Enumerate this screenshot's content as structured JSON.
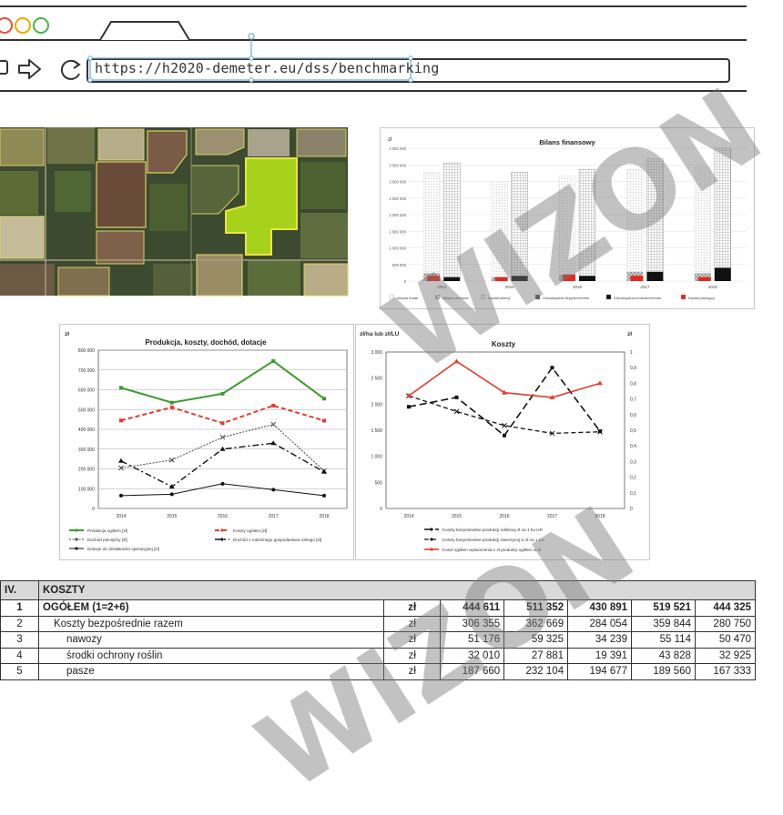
{
  "browser": {
    "url": "https://h2020-demeter.eu/dss/benchmarking",
    "traffic_colors": [
      "#e84d3b",
      "#f0a800",
      "#3dbb3d"
    ]
  },
  "financial_chart": {
    "title": "Bilans finansowy",
    "unit": "zł",
    "y_ticks": [
      "4 000 000",
      "3 500 000",
      "3 000 000",
      "2 500 000",
      "2 000 000",
      "1 500 000",
      "1 000 000",
      "500 000",
      "0"
    ],
    "years": [
      "2014",
      "2015",
      "2016",
      "2017",
      "2018"
    ],
    "legend": [
      "Aktywa trwałe",
      "Aktywa obrotowe",
      "Kapitał własny",
      "Zobowiązania długoterminowe",
      "Zobowiązania krótkoterminowe",
      "Kapitał pracujący"
    ]
  },
  "chart_data": [
    {
      "type": "line",
      "title": "Produkcja, koszty, dochód, dotacje",
      "unit": "zł",
      "x": [
        "2014",
        "2015",
        "2016",
        "2017",
        "2018"
      ],
      "y_ticks": [
        "800 000",
        "700 000",
        "600 000",
        "500 000",
        "400 000",
        "300 000",
        "200 000",
        "100 000",
        "0"
      ],
      "ylim": [
        0,
        800000
      ],
      "series": [
        {
          "name": "Produkcja ogółem [zł]",
          "color": "#3a9a2e",
          "values": [
            610000,
            535000,
            580000,
            745000,
            555000
          ]
        },
        {
          "name": "Koszty ogółem [zł]",
          "color": "#e23b30",
          "values": [
            445000,
            511000,
            431000,
            520000,
            444000
          ]
        },
        {
          "name": "Dochód pieniężny [zł]",
          "color": "#444444",
          "values": [
            205000,
            245000,
            360000,
            425000,
            190000
          ]
        },
        {
          "name": "Dochód z rodzinnego gospodarstwa rolnego [zł]",
          "color": "#111111",
          "values": [
            240000,
            110000,
            300000,
            330000,
            185000
          ]
        },
        {
          "name": "Dotacje do działalności operacyjnej [zł]",
          "color": "#111111",
          "values": [
            65000,
            72000,
            125000,
            95000,
            65000
          ]
        }
      ]
    },
    {
      "type": "line",
      "title": "Koszty",
      "left_unit": "zł/ha lub zł/LU",
      "right_unit": "zł",
      "x": [
        "2014",
        "2015",
        "2016",
        "2017",
        "2018"
      ],
      "y_ticks": [
        "3 000",
        "2 500",
        "2 000",
        "1 500",
        "1 000",
        "500",
        "0"
      ],
      "y2_ticks": [
        "1",
        "0,9",
        "0,8",
        "0,7",
        "0,6",
        "0,5",
        "0,4",
        "0,3",
        "0,2",
        "0,1",
        "0"
      ],
      "ylim": [
        0,
        3000
      ],
      "y2lim": [
        0,
        1
      ],
      "series": [
        {
          "name": "Koszty bezpośrednie produkcji roślinnej zł na 1 ha UR",
          "color": "#111111",
          "axis": "left",
          "values": [
            1950,
            2130,
            1400,
            2700,
            1480
          ]
        },
        {
          "name": "Koszty bezpośrednie produkcji zwierzęcej w zł na 1 LU",
          "color": "#111111",
          "axis": "right",
          "values": [
            0.72,
            0.62,
            0.53,
            0.48,
            0.49
          ]
        },
        {
          "name": "Koszt ogółem wytworzenia 1 zł produkcji ogółem w zł",
          "color": "#e23b30",
          "axis": "right",
          "values": [
            0.72,
            0.94,
            0.74,
            0.71,
            0.8
          ]
        }
      ]
    }
  ],
  "table": {
    "section_no": "IV.",
    "section_title": "KOSZTY",
    "rows": [
      {
        "no": "1",
        "label": "OGÓŁEM (1=2+6)",
        "unit": "zł",
        "values": [
          "444 611",
          "511 352",
          "430 891",
          "519 521",
          "444 325"
        ],
        "bold": true
      },
      {
        "no": "2",
        "label": "Koszty bezpośrednie razem",
        "unit": "zł",
        "values": [
          "306 355",
          "362 669",
          "284 054",
          "359 844",
          "280 750"
        ],
        "bold": false
      },
      {
        "no": "3",
        "label": "nawozy",
        "unit": "zł",
        "values": [
          "51 176",
          "59 325",
          "34 239",
          "55 114",
          "50 470"
        ],
        "bold": false
      },
      {
        "no": "4",
        "label": "środki ochrony roślin",
        "unit": "zł",
        "values": [
          "32 010",
          "27 881",
          "19 391",
          "43 828",
          "32 925"
        ],
        "bold": false
      },
      {
        "no": "5",
        "label": "pasze",
        "unit": "zł",
        "values": [
          "187 660",
          "232 104",
          "194 677",
          "189 560",
          "167 333"
        ],
        "bold": false
      }
    ]
  },
  "watermark": {
    "text": "WIZON"
  }
}
